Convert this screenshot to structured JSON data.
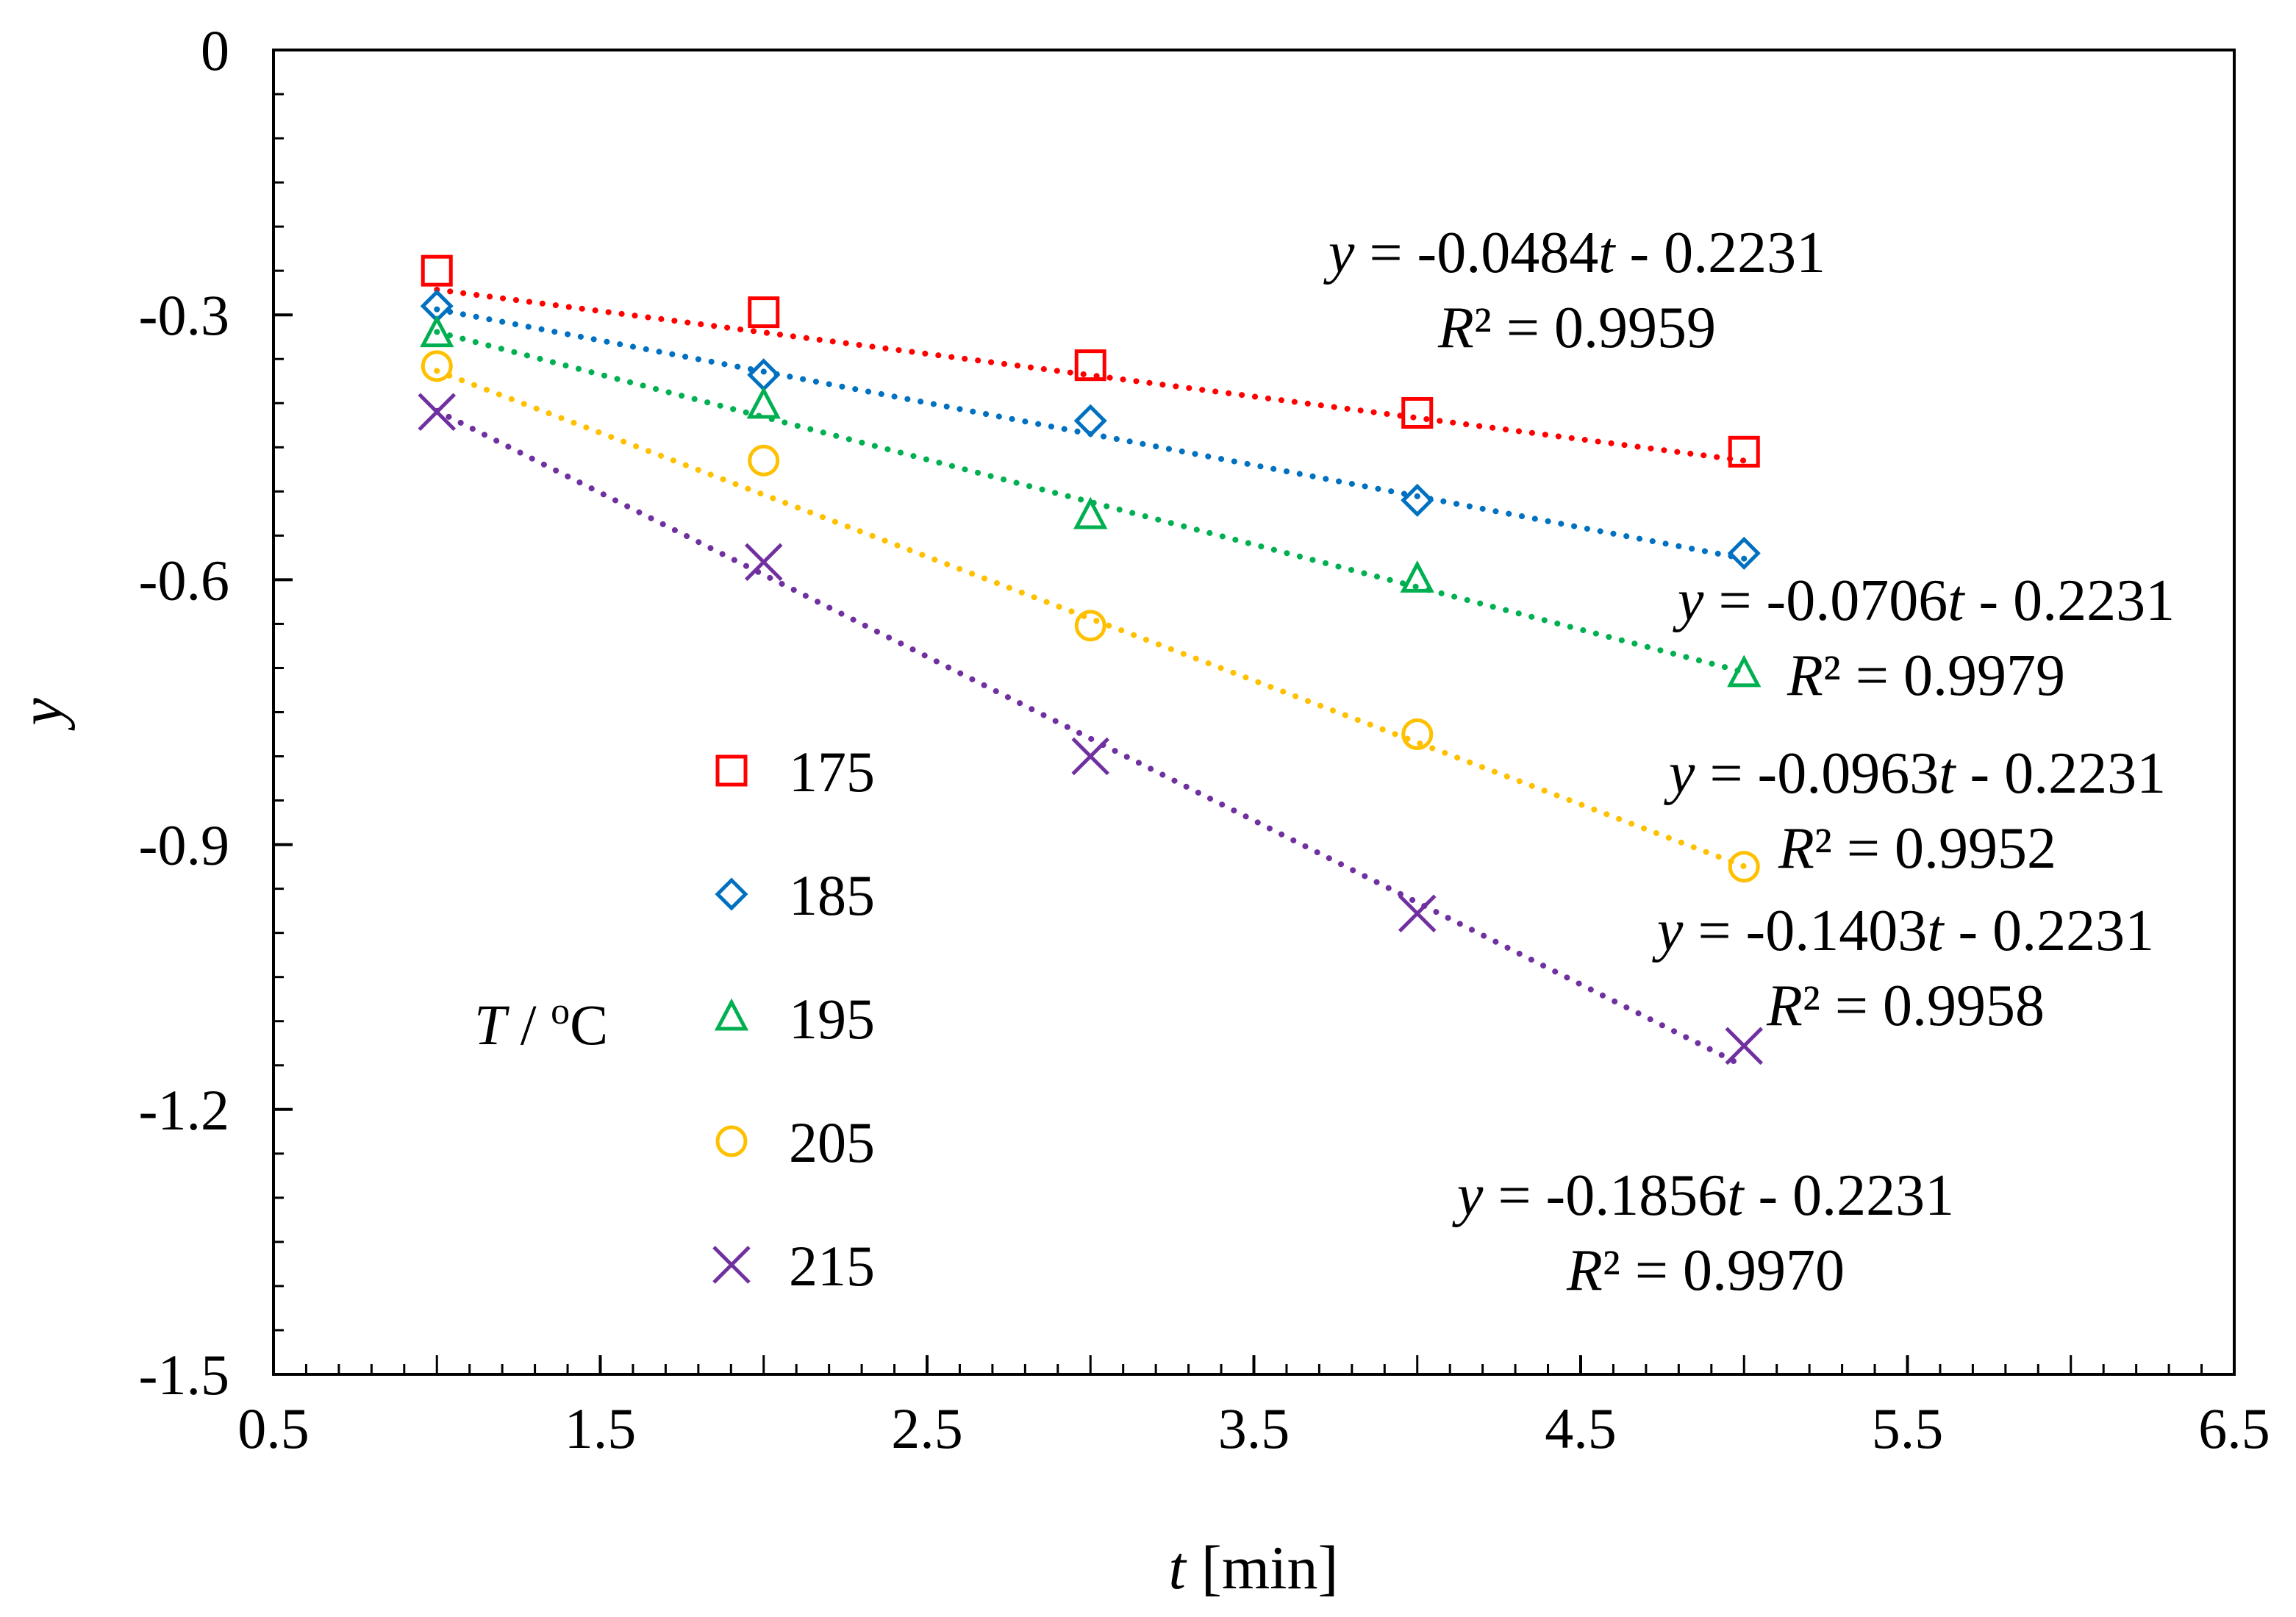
{
  "chart_data": {
    "type": "scatter",
    "title": "",
    "xlabel_var": "t",
    "xlabel_unit": " [min]",
    "ylabel": "y",
    "xlim": [
      0.5,
      6.5
    ],
    "ylim": [
      -1.5,
      0
    ],
    "x_major_ticks": [
      0.5,
      1.5,
      2.5,
      3.5,
      4.5,
      5.5,
      6.5
    ],
    "x_tick_labels": [
      "0.5",
      "1.5",
      "2.5",
      "3.5",
      "4.5",
      "5.5",
      "6.5"
    ],
    "y_major_ticks": [
      0,
      -0.3,
      -0.6,
      -0.9,
      -1.2,
      -1.5
    ],
    "y_tick_labels": [
      "0",
      "-0.3",
      "-0.6",
      "-0.9",
      "-1.2",
      "-1.5"
    ],
    "grid": false,
    "legend": {
      "title_var": "T",
      "title_unit_prefix": " / ",
      "title_unit_sup": "o",
      "title_unit_suffix": "C",
      "placement": "lower-left"
    },
    "series": [
      {
        "name": "175",
        "marker": "square",
        "color": "#ff0000",
        "x": [
          1,
          2,
          3,
          4,
          5
        ],
        "y": [
          -0.25,
          -0.297,
          -0.357,
          -0.411,
          -0.455
        ],
        "fit": {
          "slope": -0.0484,
          "intercept": -0.2231
        },
        "eq_y": "y",
        "eq_rest": " = -0.0484",
        "eq_t": "t",
        "eq_tail": " - 0.2231",
        "r2_R": "R",
        "r2_rest": "² = 0.9959"
      },
      {
        "name": "185",
        "marker": "diamond",
        "color": "#0070c0",
        "x": [
          1,
          2,
          3,
          4,
          5
        ],
        "y": [
          -0.29,
          -0.368,
          -0.42,
          -0.51,
          -0.57
        ],
        "fit": {
          "slope": -0.0706,
          "intercept": -0.2231
        },
        "eq_y": "y",
        "eq_rest": " = -0.0706",
        "eq_t": "t",
        "eq_tail": " - 0.2231",
        "r2_R": "R",
        "r2_rest": "² = 0.9979"
      },
      {
        "name": "195",
        "marker": "triangle",
        "color": "#00b050",
        "x": [
          1,
          2,
          3,
          4,
          5
        ],
        "y": [
          -0.322,
          -0.403,
          -0.528,
          -0.6,
          -0.707
        ],
        "fit": {
          "slope": -0.0963,
          "intercept": -0.2231
        },
        "eq_y": "y",
        "eq_rest": " = -0.0963",
        "eq_t": "t",
        "eq_tail": " - 0.2231",
        "r2_R": "R",
        "r2_rest": "² = 0.9952"
      },
      {
        "name": "205",
        "marker": "circle",
        "color": "#ffc000",
        "x": [
          1,
          2,
          3,
          4,
          5
        ],
        "y": [
          -0.358,
          -0.465,
          -0.652,
          -0.775,
          -0.925
        ],
        "fit": {
          "slope": -0.1403,
          "intercept": -0.2231
        },
        "eq_y": "y",
        "eq_rest": " = -0.1403",
        "eq_t": "t",
        "eq_tail": " - 0.2231",
        "r2_R": "R",
        "r2_rest": "² = 0.9958"
      },
      {
        "name": "215",
        "marker": "cross",
        "color": "#7030a0",
        "x": [
          1,
          2,
          3,
          4,
          5
        ],
        "y": [
          -0.41,
          -0.58,
          -0.8,
          -0.978,
          -1.128
        ],
        "fit": {
          "slope": -0.1856,
          "intercept": -0.2231
        },
        "eq_y": "y",
        "eq_rest": " = -0.1856",
        "eq_t": "t",
        "eq_tail": " - 0.2231",
        "r2_R": "R",
        "r2_rest": "² = 0.9970"
      }
    ]
  }
}
